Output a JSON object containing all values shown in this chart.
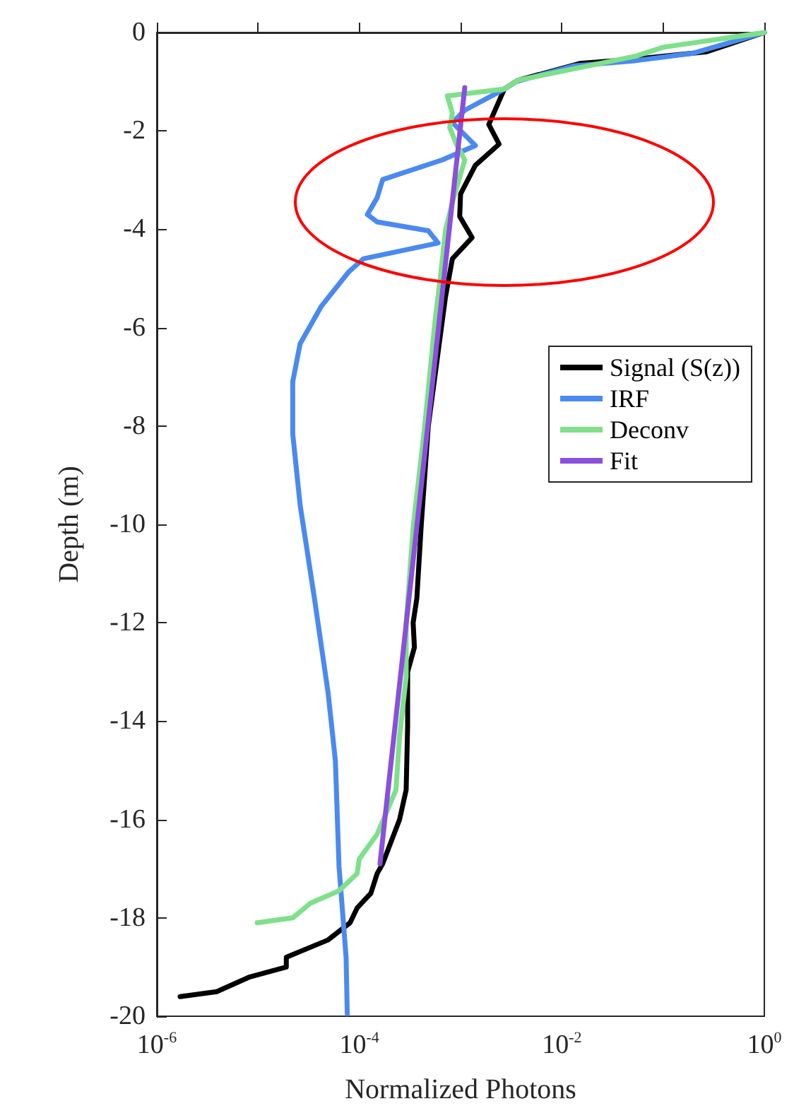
{
  "chart_data": {
    "type": "line",
    "xlabel": "Normalized Photons",
    "ylabel": "Depth (m)",
    "log": "x",
    "xlim": [
      1e-06,
      1
    ],
    "ylim": [
      -20,
      0
    ],
    "xticks": [
      {
        "value": 1e-06,
        "label": "10$^{-6}$"
      },
      {
        "value": 1e-05,
        "label": null
      },
      {
        "value": 0.0001,
        "label": "10$^{-4}$"
      },
      {
        "value": 0.001,
        "label": null
      },
      {
        "value": 0.01,
        "label": "10$^{-2}$"
      },
      {
        "value": 0.1,
        "label": null
      },
      {
        "value": 1,
        "label": "10$^{0}$"
      }
    ],
    "yticks": [
      -20,
      -18,
      -16,
      -14,
      -12,
      -10,
      -8,
      -6,
      -4,
      -2,
      0
    ],
    "grid": false,
    "legend": "right",
    "marker": "none",
    "line_style": "solid",
    "series": [
      {
        "name": "Signal (S(z))",
        "color": "#000000",
        "x": [
          1,
          0.27,
          0.054,
          0.015,
          0.0037,
          0.0027,
          0.0019,
          0.0024,
          0.0014,
          0.001,
          0.00098,
          0.0013,
          0.00083,
          0.00071,
          0.0006,
          0.00048,
          0.00041,
          0.00037,
          0.00034,
          0.00035,
          0.0003,
          0.0003,
          0.00029,
          0.00025,
          0.00017,
          0.00015,
          0.00013,
          9.5e-05,
          8.1e-05,
          4.9e-05,
          1.9e-05,
          1.9e-05,
          8.3e-06,
          3.9e-06,
          1.7e-06
        ],
        "values": [
          0,
          -0.39,
          -0.54,
          -0.63,
          -0.97,
          -1.15,
          -1.87,
          -2.27,
          -2.7,
          -3.28,
          -3.74,
          -4.17,
          -4.6,
          -5.37,
          -6.5,
          -8,
          -9.97,
          -11.5,
          -12,
          -12.5,
          -13,
          -14.1,
          -15.4,
          -16,
          -16.9,
          -17.1,
          -17.5,
          -17.8,
          -18.1,
          -18.45,
          -18.8,
          -19,
          -19.2,
          -19.5,
          -19.6
        ]
      },
      {
        "name": "IRF",
        "color": "#4a8af0",
        "x": [
          1,
          0.2,
          0.05,
          0.013,
          0.0035,
          0.0027,
          0.0011,
          0.00083,
          0.0014,
          0.00066,
          0.00017,
          0.00015,
          0.00012,
          0.00015,
          0.00048,
          0.0006,
          0.00011,
          7.9e-05,
          4.2e-05,
          2.6e-05,
          2.2e-05,
          2.2e-05,
          2.6e-05,
          3.6e-05,
          4.9e-05,
          5.8e-05,
          6.3e-05,
          7.4e-05,
          7.6e-05
        ],
        "values": [
          0,
          -0.42,
          -0.58,
          -0.68,
          -1,
          -1.15,
          -1.58,
          -1.83,
          -2.3,
          -2.59,
          -2.99,
          -3.36,
          -3.7,
          -3.85,
          -4.03,
          -4.28,
          -4.6,
          -4.86,
          -5.57,
          -6.33,
          -7.1,
          -8.16,
          -9.6,
          -11.5,
          -13.4,
          -14.8,
          -16.95,
          -18.8,
          -19.95
        ]
      },
      {
        "name": "Deconv",
        "color": "#7ee08a",
        "x": [
          1,
          0.1,
          0.054,
          0.0037,
          0.0027,
          0.00074,
          0.00083,
          0.00078,
          0.00091,
          0.0011,
          0.00083,
          0.00071,
          0.00063,
          0.00056,
          0.00044,
          0.00034,
          0.00029,
          0.00029,
          0.00025,
          0.00023,
          0.00015,
          0.0001,
          9.5e-05,
          6.3e-05,
          3.3e-05,
          2.2e-05,
          9.8e-06
        ],
        "values": [
          0,
          -0.3,
          -0.48,
          -0.97,
          -1.15,
          -1.29,
          -1.64,
          -1.93,
          -2.27,
          -2.59,
          -3.45,
          -4.02,
          -5,
          -5.86,
          -8.05,
          -10.06,
          -12,
          -13.1,
          -14.3,
          -15.4,
          -16.3,
          -16.8,
          -17.1,
          -17.45,
          -17.7,
          -18,
          -18.1
        ]
      },
      {
        "name": "Fit",
        "color": "#8a4fdc",
        "x": [
          0.0011,
          0.00016
        ],
        "values": [
          -1.12,
          -16.9
        ]
      }
    ]
  }
}
